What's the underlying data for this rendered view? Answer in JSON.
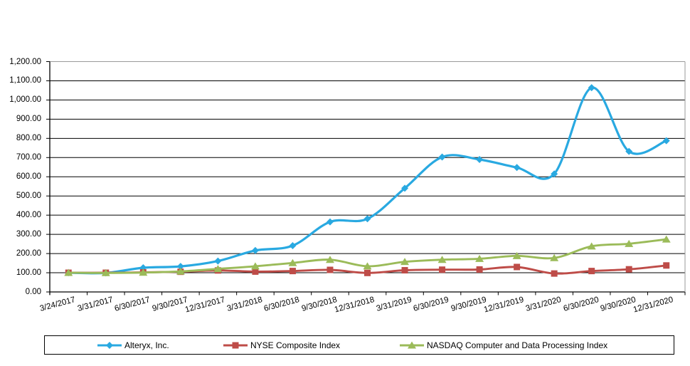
{
  "chart_data": {
    "type": "line",
    "title": "",
    "xlabel": "",
    "ylabel": "",
    "categories": [
      "3/24/2017",
      "3/31/2017",
      "6/30/2017",
      "9/30/2017",
      "12/31/2017",
      "3/31/2018",
      "6/30/2018",
      "9/30/2018",
      "12/31/2018",
      "3/31/2019",
      "6/30/2019",
      "9/30/2019",
      "12/31/2019",
      "3/31/2020",
      "6/30/2020",
      "9/30/2020",
      "12/31/2020"
    ],
    "series": [
      {
        "name": "Alteryx, Inc.",
        "color": "#29A9E1",
        "marker": "diamond",
        "values": [
          100,
          99,
          126,
          133,
          161,
          216,
          241,
          365,
          381,
          540,
          703,
          690,
          648,
          615,
          1064,
          732,
          788
        ]
      },
      {
        "name": "NYSE Composite Index",
        "color": "#BE4C48",
        "marker": "square",
        "values": [
          100,
          100,
          102,
          105,
          112,
          106,
          109,
          115,
          99,
          113,
          116,
          117,
          130,
          96,
          109,
          118,
          138
        ]
      },
      {
        "name": "NASDAQ Computer and Data Processing Index",
        "color": "#9BBB59",
        "marker": "triangle",
        "values": [
          100,
          99,
          101,
          107,
          120,
          134,
          151,
          168,
          134,
          157,
          168,
          173,
          188,
          177,
          238,
          251,
          274
        ]
      }
    ],
    "ylim": [
      0,
      1200
    ],
    "y_tick_step": 100,
    "y_tick_labels": [
      "0.00",
      "100.00",
      "200.00",
      "300.00",
      "400.00",
      "500.00",
      "600.00",
      "700.00",
      "800.00",
      "900.00",
      "1,000.00",
      "1,100.00",
      "1,200.00"
    ],
    "grid": "horizontal",
    "grid_color": "#000000",
    "frame_color": "#9a9a9a",
    "axis_color": "#000000",
    "legend_position": "bottom",
    "smoothed": true
  }
}
